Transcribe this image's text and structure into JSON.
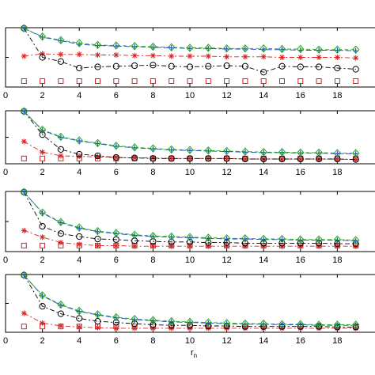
{
  "chart_data": [
    {
      "type": "line",
      "x": [
        1,
        2,
        3,
        4,
        5,
        6,
        7,
        8,
        9,
        10,
        11,
        12,
        13,
        14,
        15,
        16,
        17,
        18,
        19
      ],
      "xlim": [
        0,
        20
      ],
      "xticks": [
        0,
        2,
        4,
        6,
        8,
        10,
        12,
        14,
        16,
        18
      ],
      "ylim": [
        0,
        1
      ],
      "series": [
        {
          "marker": "diamond",
          "color": "#22aa22",
          "values": [
            0.99,
            0.85,
            0.79,
            0.74,
            0.71,
            0.7,
            0.69,
            0.68,
            0.67,
            0.66,
            0.66,
            0.65,
            0.65,
            0.65,
            0.64,
            0.64,
            0.63,
            0.63,
            0.63
          ]
        },
        {
          "marker": "plus",
          "color": "#2244cc",
          "values": [
            0.99,
            0.84,
            0.78,
            0.72,
            0.7,
            0.69,
            0.68,
            0.67,
            0.66,
            0.65,
            0.65,
            0.64,
            0.64,
            0.63,
            0.63,
            0.62,
            0.62,
            0.62,
            0.61
          ]
        },
        {
          "marker": "star",
          "color": "#dd2222",
          "values": [
            0.52,
            0.56,
            0.55,
            0.55,
            0.54,
            0.54,
            0.53,
            0.53,
            0.52,
            0.52,
            0.52,
            0.51,
            0.51,
            0.51,
            0.5,
            0.5,
            0.5,
            0.5,
            0.49
          ]
        },
        {
          "marker": "circle",
          "color": "#000000",
          "values": [
            0.99,
            0.5,
            0.43,
            0.32,
            0.34,
            0.35,
            0.36,
            0.37,
            0.35,
            0.34,
            0.35,
            0.36,
            0.35,
            0.25,
            0.35,
            0.34,
            0.34,
            0.32,
            0.3
          ]
        },
        {
          "marker": "square",
          "color": "#dd2222",
          "values": [
            0.1,
            0.1,
            0.1,
            0.1,
            0.1,
            0.1,
            0.1,
            0.1,
            0.1,
            0.1,
            0.1,
            0.1,
            0.1,
            0.1,
            0.1,
            0.1,
            0.1,
            0.1,
            0.1
          ]
        }
      ]
    },
    {
      "type": "line",
      "x": [
        1,
        2,
        3,
        4,
        5,
        6,
        7,
        8,
        9,
        10,
        11,
        12,
        13,
        14,
        15,
        16,
        17,
        18,
        19
      ],
      "xlim": [
        0,
        20
      ],
      "xticks": [
        0,
        2,
        4,
        6,
        8,
        10,
        12,
        14,
        16,
        18
      ],
      "ylim": [
        0,
        1
      ],
      "series": [
        {
          "marker": "diamond",
          "color": "#22aa22",
          "values": [
            0.99,
            0.64,
            0.51,
            0.44,
            0.39,
            0.34,
            0.31,
            0.29,
            0.27,
            0.26,
            0.25,
            0.24,
            0.23,
            0.22,
            0.22,
            0.21,
            0.21,
            0.2,
            0.2
          ]
        },
        {
          "marker": "plus",
          "color": "#2244cc",
          "values": [
            0.99,
            0.63,
            0.5,
            0.43,
            0.38,
            0.33,
            0.3,
            0.28,
            0.26,
            0.25,
            0.24,
            0.23,
            0.22,
            0.21,
            0.21,
            0.2,
            0.2,
            0.19,
            0.19
          ]
        },
        {
          "marker": "star",
          "color": "#dd2222",
          "values": [
            0.42,
            0.22,
            0.15,
            0.14,
            0.13,
            0.12,
            0.11,
            0.11,
            0.1,
            0.1,
            0.1,
            0.1,
            0.09,
            0.09,
            0.09,
            0.09,
            0.09,
            0.09,
            0.08
          ]
        },
        {
          "marker": "circle",
          "color": "#000000",
          "values": [
            0.99,
            0.55,
            0.27,
            0.18,
            0.15,
            0.12,
            0.11,
            0.1,
            0.1,
            0.1,
            0.1,
            0.1,
            0.09,
            0.09,
            0.09,
            0.09,
            0.09,
            0.09,
            0.08
          ]
        },
        {
          "marker": "square",
          "color": "#dd2222",
          "values": [
            0.1,
            0.1,
            0.1,
            0.1,
            0.1,
            0.1,
            0.1,
            0.1,
            0.1,
            0.1,
            0.1,
            0.1,
            0.1,
            0.1,
            0.1,
            0.1,
            0.1,
            0.1,
            0.1
          ]
        }
      ]
    },
    {
      "type": "line",
      "x": [
        1,
        2,
        3,
        4,
        5,
        6,
        7,
        8,
        9,
        10,
        11,
        12,
        13,
        14,
        15,
        16,
        17,
        18,
        19
      ],
      "xlim": [
        0,
        20
      ],
      "xticks": [
        0,
        2,
        4,
        6,
        8,
        10,
        12,
        14,
        16,
        18
      ],
      "ylim": [
        0,
        1
      ],
      "series": [
        {
          "marker": "diamond",
          "color": "#22aa22",
          "values": [
            0.99,
            0.65,
            0.49,
            0.4,
            0.34,
            0.31,
            0.28,
            0.26,
            0.25,
            0.24,
            0.23,
            0.22,
            0.22,
            0.21,
            0.21,
            0.2,
            0.2,
            0.2,
            0.19
          ]
        },
        {
          "marker": "plus",
          "color": "#2244cc",
          "values": [
            0.99,
            0.64,
            0.48,
            0.39,
            0.33,
            0.3,
            0.27,
            0.25,
            0.24,
            0.23,
            0.22,
            0.21,
            0.21,
            0.2,
            0.2,
            0.19,
            0.19,
            0.19,
            0.18
          ]
        },
        {
          "marker": "star",
          "color": "#dd2222",
          "values": [
            0.35,
            0.24,
            0.15,
            0.12,
            0.1,
            0.1,
            0.09,
            0.09,
            0.09,
            0.09,
            0.09,
            0.09,
            0.09,
            0.09,
            0.09,
            0.09,
            0.09,
            0.09,
            0.09
          ]
        },
        {
          "marker": "circle",
          "color": "#000000",
          "values": [
            0.99,
            0.42,
            0.3,
            0.25,
            0.21,
            0.2,
            0.18,
            0.17,
            0.16,
            0.16,
            0.15,
            0.15,
            0.14,
            0.14,
            0.14,
            0.14,
            0.14,
            0.13,
            0.13
          ]
        },
        {
          "marker": "square",
          "color": "#dd2222",
          "values": [
            0.1,
            0.1,
            0.1,
            0.1,
            0.1,
            0.1,
            0.1,
            0.1,
            0.1,
            0.1,
            0.1,
            0.1,
            0.1,
            0.1,
            0.1,
            0.1,
            0.1,
            0.1,
            0.1
          ]
        }
      ]
    },
    {
      "type": "line",
      "x": [
        1,
        2,
        3,
        4,
        5,
        6,
        7,
        8,
        9,
        10,
        11,
        12,
        13,
        14,
        15,
        16,
        17,
        18,
        19
      ],
      "xlim": [
        0,
        20
      ],
      "xticks": [
        0,
        2,
        4,
        6,
        8,
        10,
        12,
        14,
        16,
        18
      ],
      "ylim": [
        0,
        1
      ],
      "xlabel_main": "r",
      "xlabel_sub": "n",
      "series": [
        {
          "marker": "diamond",
          "color": "#22aa22",
          "values": [
            0.99,
            0.64,
            0.48,
            0.37,
            0.31,
            0.26,
            0.23,
            0.21,
            0.19,
            0.18,
            0.17,
            0.16,
            0.15,
            0.15,
            0.14,
            0.14,
            0.13,
            0.13,
            0.13
          ]
        },
        {
          "marker": "plus",
          "color": "#2244cc",
          "values": [
            0.99,
            0.63,
            0.47,
            0.36,
            0.3,
            0.25,
            0.22,
            0.2,
            0.18,
            0.17,
            0.16,
            0.15,
            0.14,
            0.14,
            0.13,
            0.13,
            0.12,
            0.12,
            0.12
          ]
        },
        {
          "marker": "star",
          "color": "#dd2222",
          "values": [
            0.33,
            0.16,
            0.11,
            0.09,
            0.08,
            0.07,
            0.07,
            0.07,
            0.07,
            0.07,
            0.07,
            0.07,
            0.07,
            0.07,
            0.07,
            0.07,
            0.07,
            0.07,
            0.07
          ]
        },
        {
          "marker": "circle",
          "color": "#000000",
          "values": [
            0.99,
            0.45,
            0.32,
            0.24,
            0.19,
            0.17,
            0.15,
            0.13,
            0.12,
            0.12,
            0.11,
            0.11,
            0.1,
            0.1,
            0.1,
            0.1,
            0.1,
            0.09,
            0.09
          ]
        },
        {
          "marker": "square",
          "color": "#dd2222",
          "values": [
            0.1,
            0.1,
            0.1,
            0.1,
            0.1,
            0.1,
            0.1,
            0.1,
            0.1,
            0.1,
            0.1,
            0.1,
            0.1,
            0.1,
            0.1,
            0.1,
            0.1,
            0.1,
            0.1
          ]
        }
      ]
    }
  ]
}
